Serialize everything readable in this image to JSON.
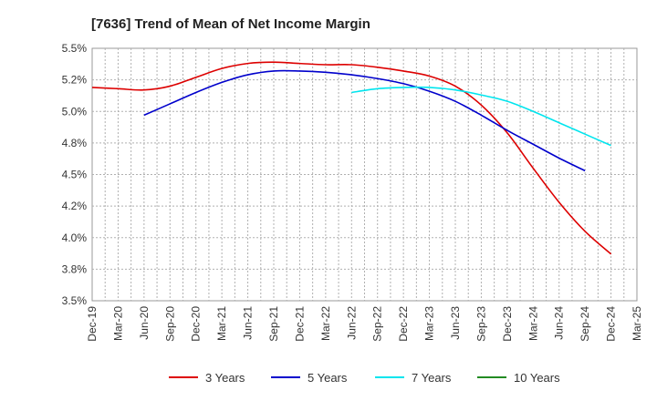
{
  "chart_data": {
    "type": "line",
    "title": "[7636]  Trend of Mean of Net Income Margin",
    "xlabel": "",
    "ylabel": "",
    "x_ticks": [
      "Dec-19",
      "Mar-20",
      "Jun-20",
      "Sep-20",
      "Dec-20",
      "Mar-21",
      "Jun-21",
      "Sep-21",
      "Dec-21",
      "Mar-22",
      "Jun-22",
      "Sep-22",
      "Dec-22",
      "Mar-23",
      "Jun-23",
      "Sep-23",
      "Dec-23",
      "Mar-24",
      "Jun-24",
      "Sep-24",
      "Dec-24",
      "Mar-25"
    ],
    "y_ticks": [
      "3.5%",
      "3.8%",
      "4.0%",
      "4.2%",
      "4.5%",
      "4.8%",
      "5.0%",
      "5.2%",
      "5.5%"
    ],
    "y_tick_values": [
      3.5,
      3.75,
      4.0,
      4.25,
      4.5,
      4.75,
      5.0,
      5.25,
      5.5
    ],
    "ylim": [
      3.5,
      5.5
    ],
    "grid": true,
    "legend_position": "bottom",
    "series": [
      {
        "name": "3 Years",
        "color": "#dd0000",
        "start_index": 0,
        "values": [
          5.19,
          5.18,
          5.17,
          5.2,
          5.27,
          5.34,
          5.38,
          5.39,
          5.38,
          5.37,
          5.37,
          5.35,
          5.32,
          5.28,
          5.2,
          5.05,
          4.83,
          4.55,
          4.28,
          4.05,
          3.87
        ]
      },
      {
        "name": "5 Years",
        "color": "#0000cc",
        "start_index": 2,
        "values": [
          4.97,
          5.06,
          5.15,
          5.23,
          5.29,
          5.32,
          5.32,
          5.31,
          5.29,
          5.26,
          5.22,
          5.16,
          5.08,
          4.97,
          4.85,
          4.74,
          4.63,
          4.53
        ]
      },
      {
        "name": "7 Years",
        "color": "#00e5ee",
        "start_index": 10,
        "values": [
          5.15,
          5.18,
          5.19,
          5.19,
          5.17,
          5.13,
          5.08,
          5.0,
          4.91,
          4.82,
          4.73
        ]
      },
      {
        "name": "10 Years",
        "color": "#228b22",
        "start_index": 0,
        "values": []
      }
    ]
  }
}
